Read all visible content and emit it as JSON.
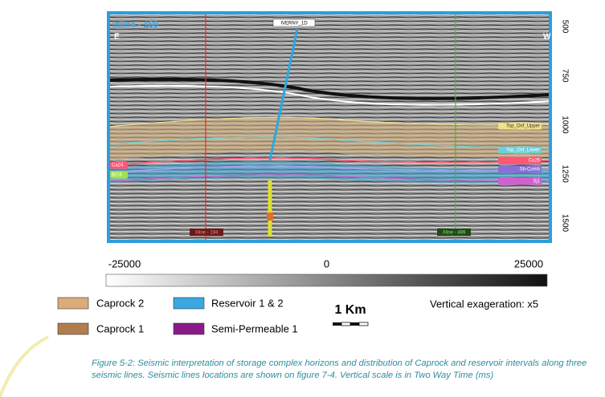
{
  "figure": {
    "section": {
      "inline_label": "Inline - 160",
      "left_dir": "E",
      "right_dir": "W",
      "well_label": "IVERNY_1D",
      "xline_left": "Xline - 194",
      "xline_right": "Xline - 499",
      "horizons_right": [
        "Top_Oxf_Upper",
        "Top_Oxf_Lower",
        "Ca26",
        "Sb-Comb",
        "Sj1"
      ],
      "horizons_left": [
        "Ca24",
        "Br16"
      ],
      "time_ticks": [
        500,
        750,
        1000,
        1250,
        1500
      ]
    },
    "colorbar": {
      "ticks": [
        {
          "value": -25000,
          "label": "-25000"
        },
        {
          "value": 0,
          "label": "0"
        },
        {
          "value": 25000,
          "label": "25000"
        }
      ]
    },
    "legend": [
      "Caprock 2",
      "Reservoir 1 & 2",
      "Caprock 1",
      "Semi-Permeable 1"
    ],
    "scale_bar": "1 Km",
    "exaggeration": "Vertical exageration: x5",
    "caption": "Figure 5-2: Seismic interpretation of storage complex horizons and distribution of Caprock and reservoir intervals along three seismic lines. Seismic lines locations are shown on figure 7-4. Vertical scale is in Two Way Time (ms)"
  }
}
